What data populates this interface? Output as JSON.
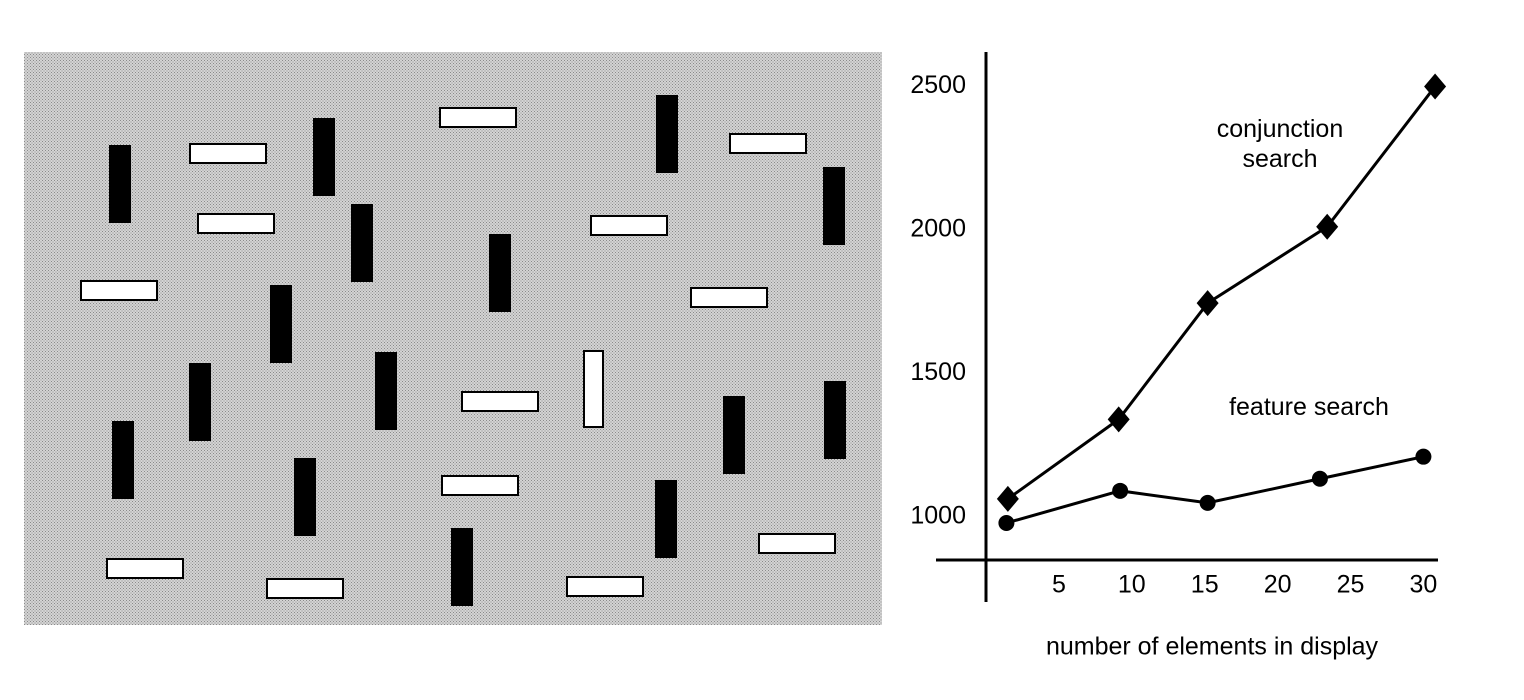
{
  "chart_data": {
    "type": "line",
    "xlabel": "number of elements in display",
    "xlim": [
      0,
      31
    ],
    "xticks": [
      5,
      10,
      15,
      20,
      25,
      30
    ],
    "ylim": [
      850,
      2620
    ],
    "yticks": [
      1000,
      1500,
      2000,
      2500
    ],
    "grid": false,
    "series": [
      {
        "name": "conjunction search",
        "color": "#000000",
        "marker": "diamond",
        "x": [
          1.5,
          9.1,
          15.2,
          23.4,
          30.8
        ],
        "values": [
          1063,
          1340,
          1745,
          2011,
          2500
        ]
      },
      {
        "name": "feature search",
        "color": "#000000",
        "marker": "circle",
        "x": [
          1.4,
          9.2,
          15.2,
          22.9,
          30
        ],
        "values": [
          979,
          1091,
          1049,
          1133,
          1210
        ]
      }
    ]
  }
}
